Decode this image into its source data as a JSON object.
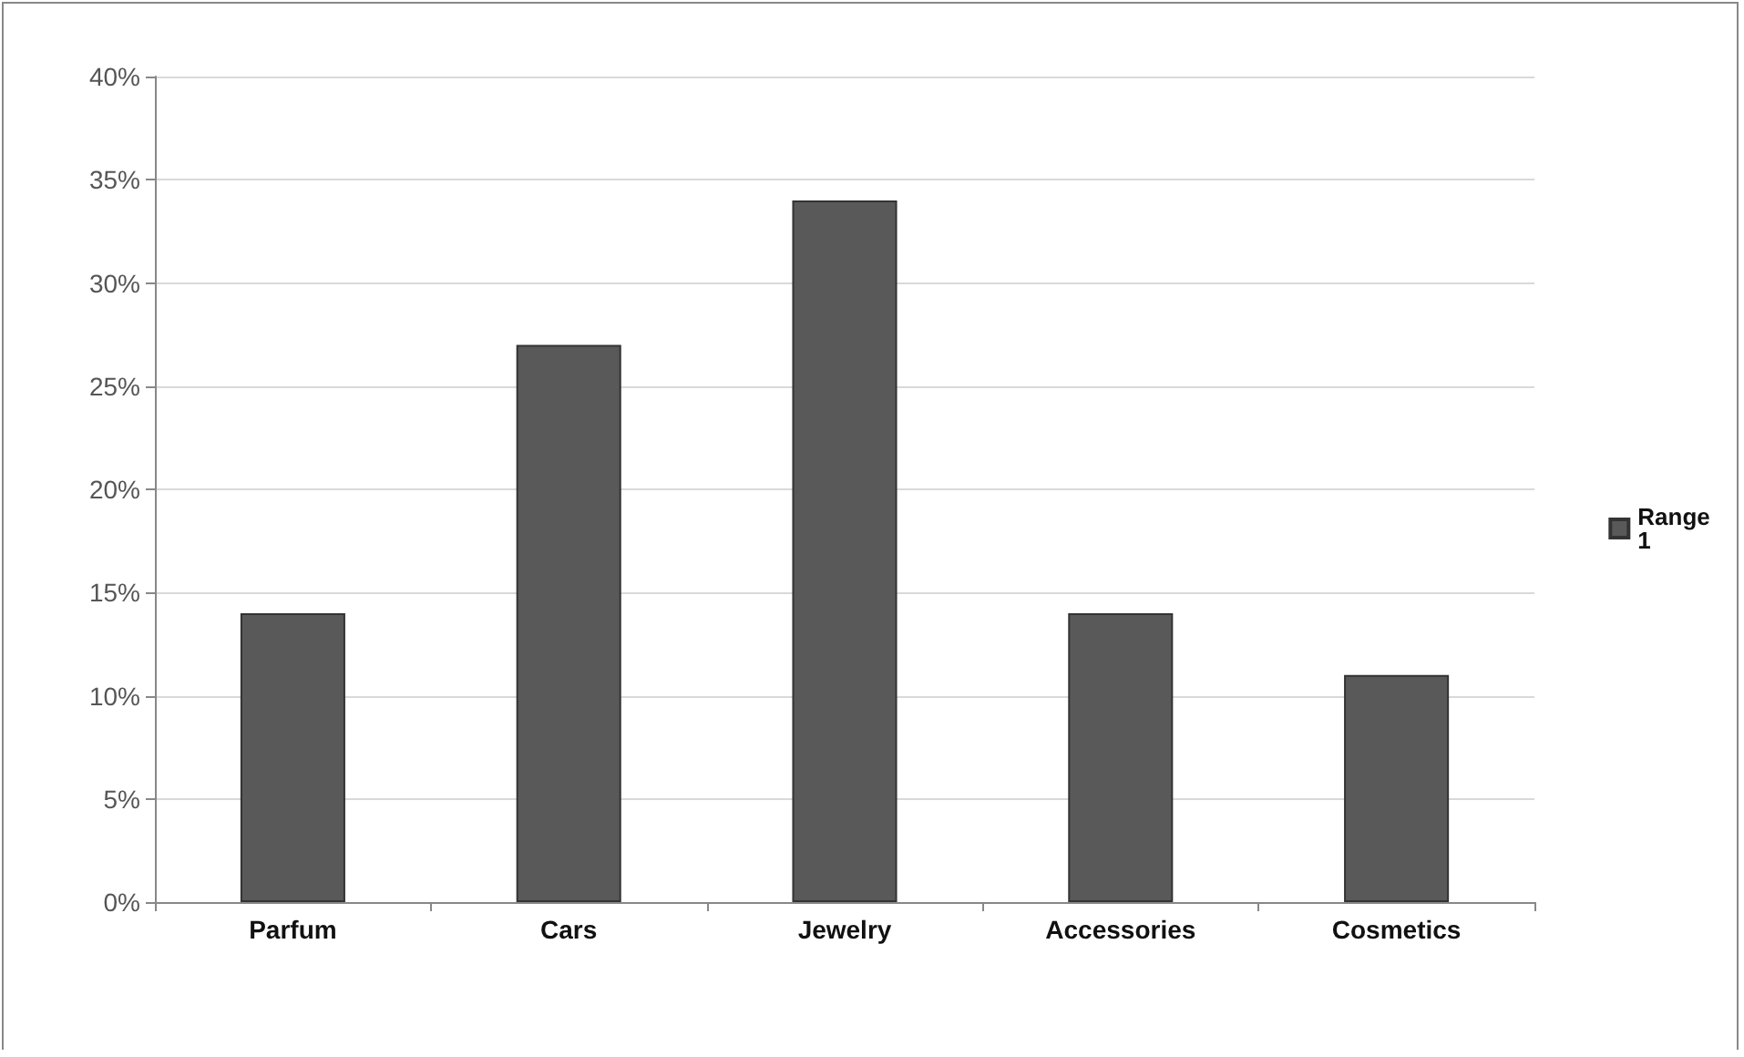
{
  "chart_data": {
    "type": "bar",
    "categories": [
      "Parfum",
      "Cars",
      "Jewelry",
      "Accessories",
      "Cosmetics"
    ],
    "series": [
      {
        "name": "Range 1",
        "color": "#595959",
        "values": [
          14,
          27,
          34,
          14,
          11
        ]
      }
    ],
    "ylim": [
      0,
      40
    ],
    "yticks": [
      {
        "value": 0,
        "label": "0%"
      },
      {
        "value": 5,
        "label": "5%"
      },
      {
        "value": 10,
        "label": "10%"
      },
      {
        "value": 15,
        "label": "15%"
      },
      {
        "value": 20,
        "label": "20%"
      },
      {
        "value": 25,
        "label": "25%"
      },
      {
        "value": 30,
        "label": "30%"
      },
      {
        "value": 35,
        "label": "35%"
      },
      {
        "value": 40,
        "label": "40%"
      }
    ],
    "grid": "y",
    "legend": "right"
  }
}
